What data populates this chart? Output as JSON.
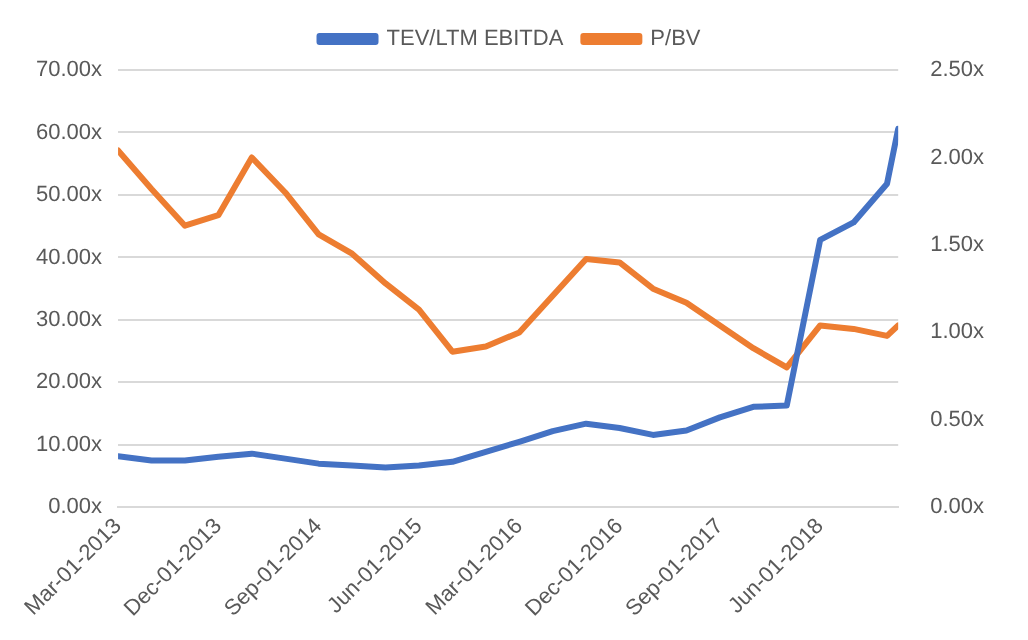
{
  "chart_data": {
    "type": "line",
    "x": [
      "2013-03-01",
      "2013-06-01",
      "2013-09-01",
      "2013-12-01",
      "2014-03-01",
      "2014-06-01",
      "2014-09-01",
      "2014-12-01",
      "2015-03-01",
      "2015-06-01",
      "2015-09-01",
      "2015-12-01",
      "2016-03-01",
      "2016-06-01",
      "2016-09-01",
      "2016-12-01",
      "2017-03-01",
      "2017-06-01",
      "2017-09-01",
      "2017-12-01",
      "2018-03-01",
      "2018-06-01",
      "2018-09-01",
      "2018-12-01",
      "2019-01-01"
    ],
    "series": [
      {
        "name": "TEV/LTM EBITDA",
        "color": "#4472c4",
        "values": [
          8.2,
          7.5,
          7.5,
          8.1,
          8.6,
          7.8,
          7.0,
          6.7,
          6.4,
          6.7,
          7.3,
          8.9,
          10.5,
          12.2,
          13.4,
          12.7,
          11.6,
          12.3,
          14.4,
          16.1,
          16.3,
          42.8,
          45.6,
          51.8,
          60.6
        ]
      },
      {
        "name": "P/BV",
        "color": "#ed7d31",
        "axis": "y2",
        "values": [
          2.04,
          1.82,
          1.61,
          1.67,
          2.0,
          1.8,
          1.56,
          1.45,
          1.28,
          1.13,
          0.89,
          0.92,
          1.0,
          1.21,
          1.42,
          1.4,
          1.25,
          1.17,
          1.04,
          0.91,
          0.8,
          1.04,
          1.02,
          0.98,
          1.04
        ]
      }
    ],
    "xlim": [
      "2013-03-01",
      "2019-01-01"
    ],
    "xticks": [
      {
        "value": "2013-03-01",
        "label": "Mar-01-2013"
      },
      {
        "value": "2013-12-01",
        "label": "Dec-01-2013"
      },
      {
        "value": "2014-09-01",
        "label": "Sep-01-2014"
      },
      {
        "value": "2015-06-01",
        "label": "Jun-01-2015"
      },
      {
        "value": "2016-03-01",
        "label": "Mar-01-2016"
      },
      {
        "value": "2016-12-01",
        "label": "Dec-01-2016"
      },
      {
        "value": "2017-09-01",
        "label": "Sep-01-2017"
      },
      {
        "value": "2018-06-01",
        "label": "Jun-01-2018"
      }
    ],
    "ylim": [
      0,
      70
    ],
    "yticks": [
      {
        "value": 0,
        "label": "0.00x"
      },
      {
        "value": 10,
        "label": "10.00x"
      },
      {
        "value": 20,
        "label": "20.00x"
      },
      {
        "value": 30,
        "label": "30.00x"
      },
      {
        "value": 40,
        "label": "40.00x"
      },
      {
        "value": 50,
        "label": "50.00x"
      },
      {
        "value": 60,
        "label": "60.00x"
      },
      {
        "value": 70,
        "label": "70.00x"
      }
    ],
    "y2lim": [
      0,
      2.5
    ],
    "y2ticks": [
      {
        "value": 0,
        "label": "0.00x"
      },
      {
        "value": 0.5,
        "label": "0.50x"
      },
      {
        "value": 1,
        "label": "1.00x"
      },
      {
        "value": 1.5,
        "label": "1.50x"
      },
      {
        "value": 2,
        "label": "2.00x"
      },
      {
        "value": 2.5,
        "label": "2.50x"
      }
    ],
    "grid": "y",
    "legend": "top",
    "marker": "none",
    "line_style": "solid"
  }
}
